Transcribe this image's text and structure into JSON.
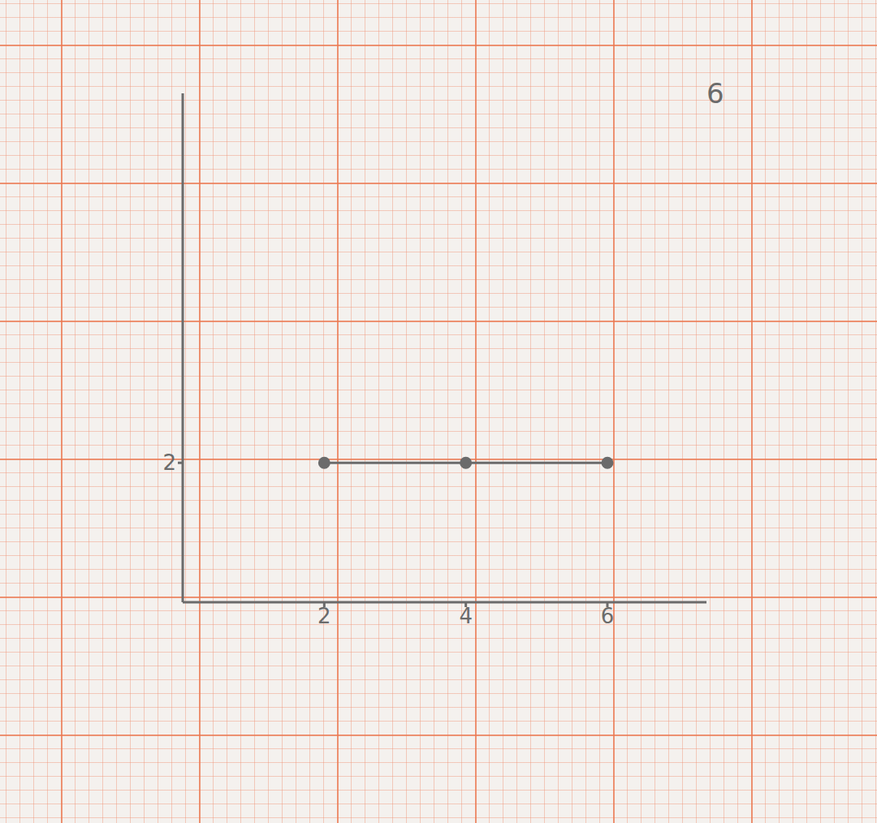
{
  "chart_data": {
    "type": "line",
    "x": [
      2,
      4,
      6
    ],
    "values": [
      2,
      2,
      2
    ],
    "xlim": [
      0,
      7.4
    ],
    "ylim": [
      0,
      7.3
    ],
    "xticks": [
      2,
      4,
      6
    ],
    "yticks": [
      2
    ],
    "color": "#6b6b6b",
    "marker": "circle",
    "grid": false,
    "annotations": [
      "6"
    ]
  }
}
